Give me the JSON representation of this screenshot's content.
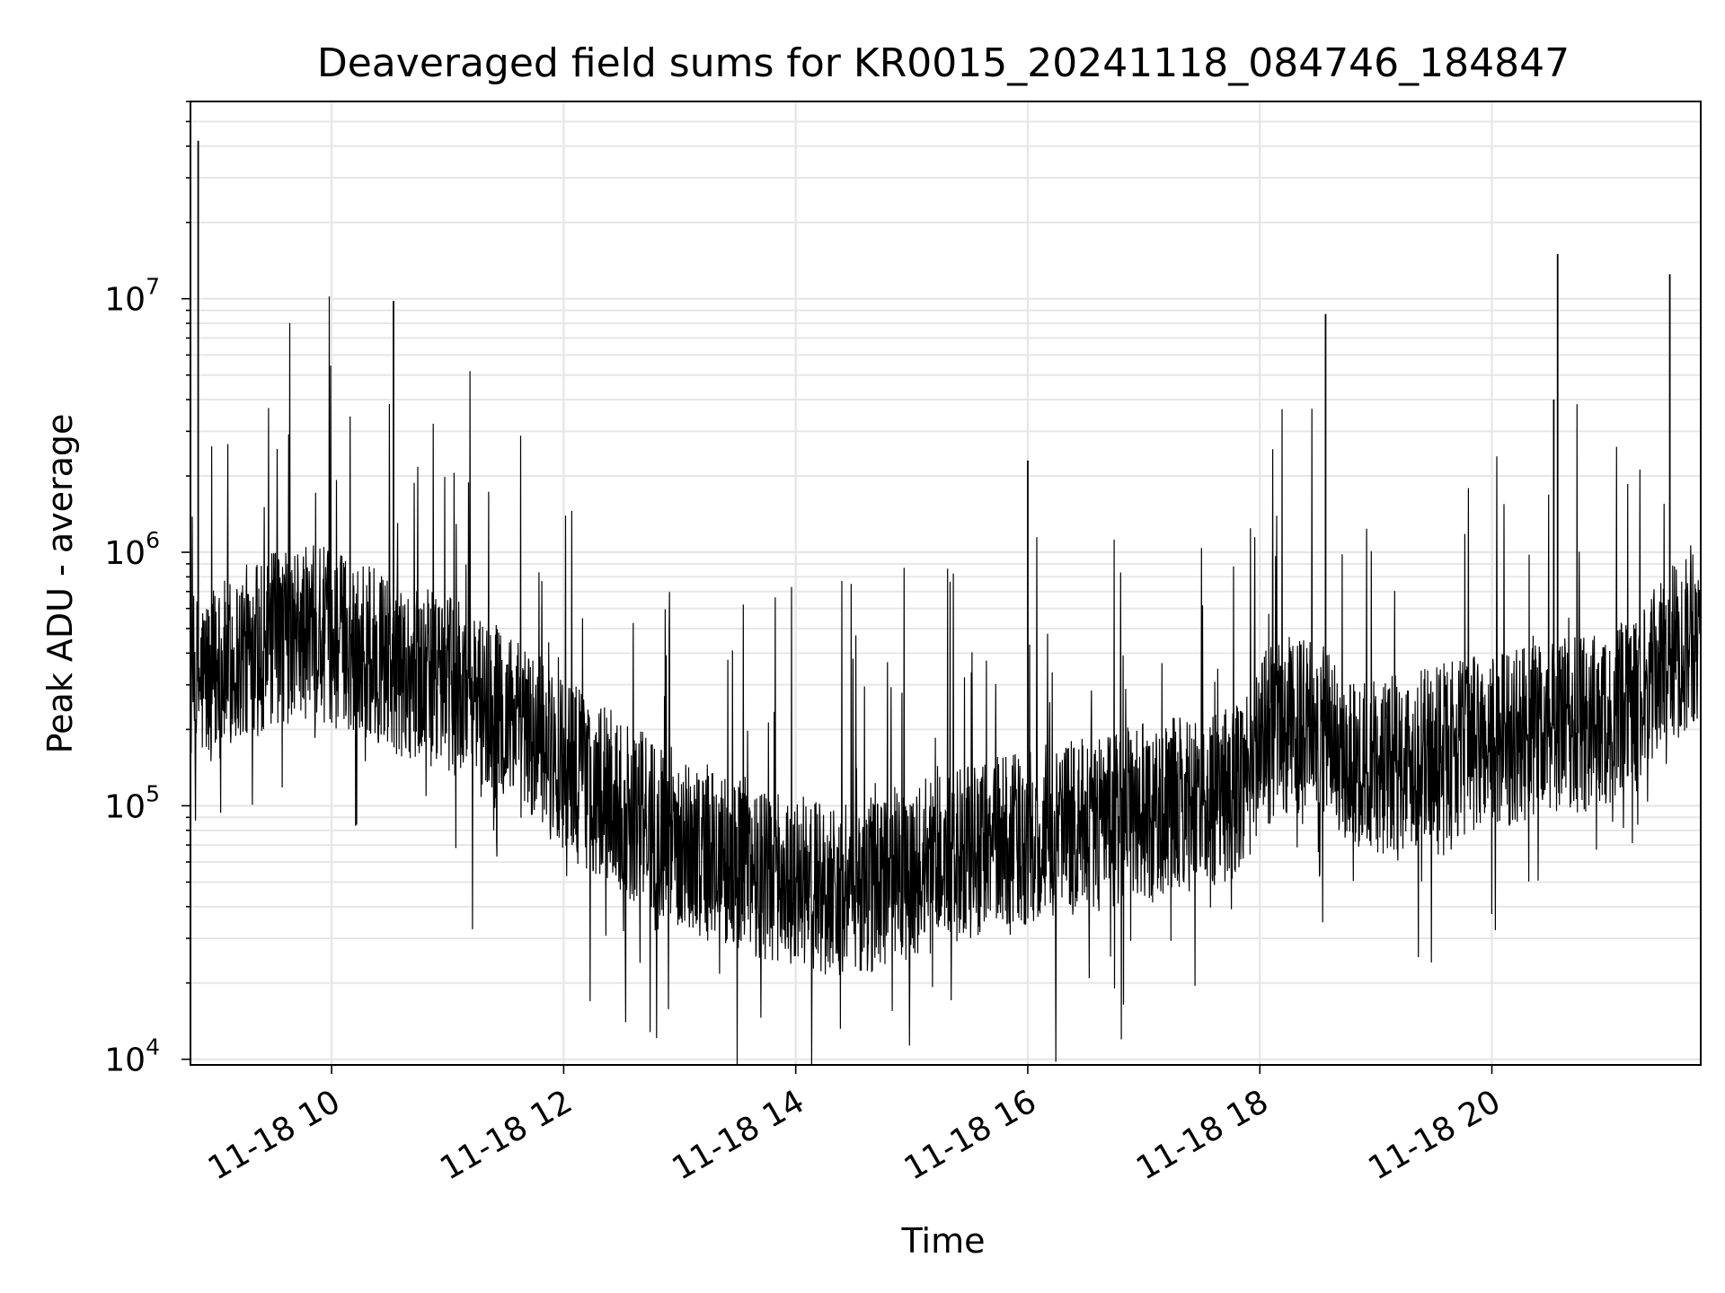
{
  "chart_data": {
    "type": "line",
    "title": "Deaveraged field sums for KR0015_20241118_084746_184847",
    "xlabel": "Time",
    "ylabel": "Peak ADU - average",
    "yscale": "log",
    "x_type": "datetime",
    "xlim": [
      "2024-11-18 08:47",
      "2024-11-18 21:48"
    ],
    "ylim": [
      9500,
      60000000
    ],
    "grid": true,
    "line_color": "#000000",
    "grid_color": "#e6e6e6",
    "x_ticks": [
      {
        "value": "2024-11-18 10:00",
        "label": "11-18 10"
      },
      {
        "value": "2024-11-18 12:00",
        "label": "11-18 12"
      },
      {
        "value": "2024-11-18 14:00",
        "label": "11-18 14"
      },
      {
        "value": "2024-11-18 16:00",
        "label": "11-18 16"
      },
      {
        "value": "2024-11-18 18:00",
        "label": "11-18 18"
      },
      {
        "value": "2024-11-18 20:00",
        "label": "11-18 20"
      }
    ],
    "y_ticks": [
      {
        "value": 10000,
        "base": "10",
        "exp": "4"
      },
      {
        "value": 100000,
        "base": "10",
        "exp": "5"
      },
      {
        "value": 1000000,
        "base": "10",
        "exp": "6"
      },
      {
        "value": 10000000,
        "base": "10",
        "exp": "7"
      }
    ],
    "series": [
      {
        "x": [
          "2024-11-18 08:47",
          "2024-11-18 09:00",
          "2024-11-18 09:15",
          "2024-11-18 09:30",
          "2024-11-18 09:45",
          "2024-11-18 10:00",
          "2024-11-18 10:15",
          "2024-11-18 10:30",
          "2024-11-18 10:45",
          "2024-11-18 11:00",
          "2024-11-18 11:15",
          "2024-11-18 11:30",
          "2024-11-18 11:45",
          "2024-11-18 12:00",
          "2024-11-18 12:15",
          "2024-11-18 12:30",
          "2024-11-18 12:45",
          "2024-11-18 13:00",
          "2024-11-18 13:15",
          "2024-11-18 13:30",
          "2024-11-18 13:45",
          "2024-11-18 14:00",
          "2024-11-18 14:15",
          "2024-11-18 14:30",
          "2024-11-18 14:45",
          "2024-11-18 15:00",
          "2024-11-18 15:15",
          "2024-11-18 15:30",
          "2024-11-18 15:45",
          "2024-11-18 16:00",
          "2024-11-18 16:15",
          "2024-11-18 16:30",
          "2024-11-18 16:45",
          "2024-11-18 17:00",
          "2024-11-18 17:15",
          "2024-11-18 17:30",
          "2024-11-18 17:45",
          "2024-11-18 18:00",
          "2024-11-18 18:15",
          "2024-11-18 18:30",
          "2024-11-18 18:45",
          "2024-11-18 19:00",
          "2024-11-18 19:15",
          "2024-11-18 19:30",
          "2024-11-18 19:45",
          "2024-11-18 20:00",
          "2024-11-18 20:15",
          "2024-11-18 20:30",
          "2024-11-18 20:45",
          "2024-11-18 21:00",
          "2024-11-18 21:15",
          "2024-11-18 21:30",
          "2024-11-18 21:48"
        ],
        "y": [
          300000,
          330000,
          400000,
          450000,
          480000,
          470000,
          420000,
          360000,
          330000,
          300000,
          270000,
          220000,
          180000,
          150000,
          120000,
          100000,
          85000,
          75000,
          65000,
          60000,
          55000,
          50000,
          48000,
          47000,
          50000,
          55000,
          60000,
          65000,
          70000,
          75000,
          80000,
          85000,
          90000,
          95000,
          100000,
          105000,
          110000,
          180000,
          210000,
          200000,
          160000,
          140000,
          150000,
          160000,
          170000,
          180000,
          190000,
          200000,
          210000,
          220000,
          250000,
          380000,
          470000
        ]
      }
    ],
    "spikes": [
      {
        "x": "2024-11-18 08:51",
        "y": 42000000
      },
      {
        "x": "2024-11-18 10:32",
        "y": 9800000
      },
      {
        "x": "2024-11-18 16:00",
        "y": 2300000
      },
      {
        "x": "2024-11-18 18:34",
        "y": 8700000
      },
      {
        "x": "2024-11-18 20:32",
        "y": 4000000
      },
      {
        "x": "2024-11-18 20:34",
        "y": 15000000
      },
      {
        "x": "2024-11-18 21:32",
        "y": 12500000
      }
    ]
  }
}
